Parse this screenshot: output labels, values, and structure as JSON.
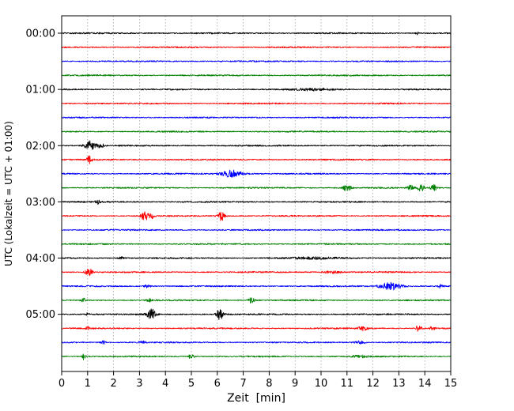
{
  "chart_data": {
    "type": "line",
    "subtype": "seismogram-dayplot",
    "title": "",
    "xlabel": "Zeit  [min]",
    "ylabel": "UTC (Lokalzeit = UTC + 01:00)",
    "xlim": [
      0,
      15
    ],
    "x_tick_labels": [
      "0",
      "1",
      "2",
      "3",
      "4",
      "5",
      "6",
      "7",
      "8",
      "9",
      "10",
      "11",
      "12",
      "13",
      "14",
      "15"
    ],
    "y_tick_labels": [
      "00:00",
      "01:00",
      "02:00",
      "03:00",
      "04:00",
      "05:00"
    ],
    "grid": "vertical-dashed",
    "legend": "none",
    "trace_color_cycle": [
      "#000000",
      "#ff0000",
      "#0000ff",
      "#008000"
    ],
    "minutes_per_row": 15,
    "rows": [
      {
        "time": "00:00",
        "label": "00:00",
        "color": "#000000",
        "events": [
          {
            "x": 13.7,
            "a": 1.6,
            "w": 0.05
          }
        ]
      },
      {
        "time": "00:15",
        "label": "",
        "color": "#ff0000",
        "events": []
      },
      {
        "time": "00:30",
        "label": "",
        "color": "#0000ff",
        "events": []
      },
      {
        "time": "00:45",
        "label": "",
        "color": "#008000",
        "events": []
      },
      {
        "time": "01:00",
        "label": "01:00",
        "color": "#000000",
        "events": [
          {
            "x": 9.7,
            "a": 1.1,
            "w": 0.6
          }
        ]
      },
      {
        "time": "01:15",
        "label": "",
        "color": "#ff0000",
        "events": []
      },
      {
        "time": "01:30",
        "label": "",
        "color": "#0000ff",
        "events": []
      },
      {
        "time": "01:45",
        "label": "",
        "color": "#008000",
        "events": []
      },
      {
        "time": "02:00",
        "label": "02:00",
        "color": "#000000",
        "events": [
          {
            "x": 1.1,
            "a": 6.0,
            "w": 0.15
          },
          {
            "x": 1.5,
            "a": 2.5,
            "w": 0.1
          }
        ]
      },
      {
        "time": "02:15",
        "label": "",
        "color": "#ff0000",
        "events": [
          {
            "x": 1.05,
            "a": 5.0,
            "w": 0.07
          }
        ]
      },
      {
        "time": "02:30",
        "label": "",
        "color": "#0000ff",
        "events": [
          {
            "x": 6.55,
            "a": 4.5,
            "w": 0.3
          }
        ]
      },
      {
        "time": "02:45",
        "label": "",
        "color": "#008000",
        "events": [
          {
            "x": 11.0,
            "a": 4.5,
            "w": 0.1
          },
          {
            "x": 13.45,
            "a": 3.5,
            "w": 0.07
          },
          {
            "x": 13.85,
            "a": 4.5,
            "w": 0.09
          },
          {
            "x": 14.35,
            "a": 3.5,
            "w": 0.09
          }
        ]
      },
      {
        "time": "03:00",
        "label": "03:00",
        "color": "#000000",
        "events": [
          {
            "x": 1.4,
            "a": 3.5,
            "w": 0.06
          }
        ]
      },
      {
        "time": "03:15",
        "label": "",
        "color": "#ff0000",
        "events": [
          {
            "x": 3.2,
            "a": 5.5,
            "w": 0.1
          },
          {
            "x": 3.5,
            "a": 3.0,
            "w": 0.07
          },
          {
            "x": 6.15,
            "a": 6.0,
            "w": 0.09
          }
        ]
      },
      {
        "time": "03:30",
        "label": "",
        "color": "#0000ff",
        "events": []
      },
      {
        "time": "03:45",
        "label": "",
        "color": "#008000",
        "events": []
      },
      {
        "time": "04:00",
        "label": "04:00",
        "color": "#000000",
        "events": [
          {
            "x": 2.3,
            "a": 1.4,
            "w": 0.1
          },
          {
            "x": 9.9,
            "a": 1.0,
            "w": 0.8
          }
        ]
      },
      {
        "time": "04:15",
        "label": "",
        "color": "#ff0000",
        "events": [
          {
            "x": 1.05,
            "a": 5.0,
            "w": 0.09
          },
          {
            "x": 10.4,
            "a": 1.4,
            "w": 0.25
          }
        ]
      },
      {
        "time": "04:30",
        "label": "",
        "color": "#0000ff",
        "events": [
          {
            "x": 3.3,
            "a": 1.8,
            "w": 0.1
          },
          {
            "x": 12.7,
            "a": 4.5,
            "w": 0.3
          },
          {
            "x": 14.6,
            "a": 2.2,
            "w": 0.07
          }
        ]
      },
      {
        "time": "04:45",
        "label": "",
        "color": "#008000",
        "events": [
          {
            "x": 0.85,
            "a": 2.2,
            "w": 0.06
          },
          {
            "x": 3.4,
            "a": 1.6,
            "w": 0.08
          },
          {
            "x": 7.3,
            "a": 3.2,
            "w": 0.09
          }
        ]
      },
      {
        "time": "05:00",
        "label": "05:00",
        "color": "#000000",
        "events": [
          {
            "x": 1.0,
            "a": 1.8,
            "w": 0.05
          },
          {
            "x": 3.45,
            "a": 7.5,
            "w": 0.11
          },
          {
            "x": 6.1,
            "a": 7.0,
            "w": 0.09
          }
        ]
      },
      {
        "time": "05:15",
        "label": "",
        "color": "#ff0000",
        "events": [
          {
            "x": 1.0,
            "a": 1.8,
            "w": 0.05
          },
          {
            "x": 11.6,
            "a": 2.8,
            "w": 0.12
          },
          {
            "x": 13.75,
            "a": 3.5,
            "w": 0.09
          },
          {
            "x": 14.3,
            "a": 2.2,
            "w": 0.08
          }
        ]
      },
      {
        "time": "05:30",
        "label": "",
        "color": "#0000ff",
        "events": [
          {
            "x": 1.6,
            "a": 2.2,
            "w": 0.06
          },
          {
            "x": 3.1,
            "a": 1.8,
            "w": 0.09
          },
          {
            "x": 11.5,
            "a": 1.8,
            "w": 0.15
          }
        ]
      },
      {
        "time": "05:45",
        "label": "",
        "color": "#008000",
        "events": [
          {
            "x": 0.85,
            "a": 3.8,
            "w": 0.05
          },
          {
            "x": 5.0,
            "a": 4.5,
            "w": 0.06
          },
          {
            "x": 11.5,
            "a": 1.4,
            "w": 0.2
          }
        ]
      }
    ]
  }
}
